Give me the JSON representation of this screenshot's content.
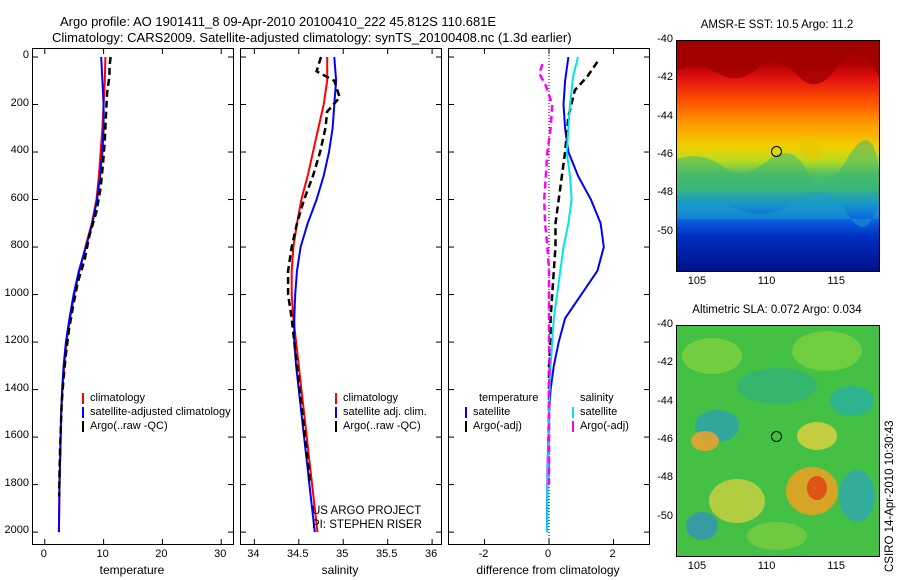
{
  "title_line1": "Argo profile: AO 1901411_8 09-Apr-2010 20100410_222 45.812S 110.681E",
  "title_line2": "Climatology: CARS2009. Satellite-adjusted climatology: synTS_20100408.nc (1.3d earlier)",
  "credit": "CSIRO 14-Apr-2010 10:30:43",
  "project_note": [
    "US ARGO PROJECT",
    "PI: STEPHEN RISER"
  ],
  "colors": {
    "climatology": "#ff0000",
    "satellite": "#0000ff",
    "argo": "#000000",
    "sal_satellite": "#00e5e5",
    "sal_argo": "#ff00ff"
  },
  "chart_data": [
    {
      "type": "line",
      "xlabel": "temperature",
      "xlim": [
        -2,
        32
      ],
      "xticks": [
        "0",
        "10",
        "20",
        "30"
      ],
      "ylim": [
        2050,
        0
      ],
      "yticks": [
        "0",
        "200",
        "400",
        "600",
        "800",
        "1000",
        "1200",
        "1400",
        "1600",
        "1800",
        "2000"
      ],
      "series": [
        {
          "name": "climatology",
          "style": "solid",
          "color": "#ff0000",
          "points": [
            [
              10.3,
              0
            ],
            [
              10.2,
              100
            ],
            [
              10.0,
              200
            ],
            [
              9.8,
              300
            ],
            [
              9.5,
              400
            ],
            [
              9.2,
              500
            ],
            [
              8.8,
              600
            ],
            [
              8.0,
              700
            ],
            [
              6.9,
              800
            ],
            [
              5.9,
              900
            ],
            [
              5.0,
              1000
            ],
            [
              4.3,
              1100
            ],
            [
              3.7,
              1200
            ],
            [
              3.3,
              1300
            ],
            [
              3.0,
              1400
            ],
            [
              2.8,
              1500
            ],
            [
              2.7,
              1600
            ],
            [
              2.6,
              1700
            ],
            [
              2.5,
              1800
            ],
            [
              2.45,
              1900
            ],
            [
              2.4,
              2000
            ]
          ]
        },
        {
          "name": "satellite-adjusted climatology",
          "style": "solid",
          "color": "#0000ff",
          "points": [
            [
              9.6,
              0
            ],
            [
              9.8,
              100
            ],
            [
              10.0,
              200
            ],
            [
              10.0,
              300
            ],
            [
              9.8,
              400
            ],
            [
              9.4,
              500
            ],
            [
              8.9,
              600
            ],
            [
              8.1,
              700
            ],
            [
              7.0,
              800
            ],
            [
              5.8,
              900
            ],
            [
              4.9,
              1000
            ],
            [
              4.2,
              1100
            ],
            [
              3.6,
              1200
            ],
            [
              3.2,
              1300
            ],
            [
              2.95,
              1400
            ],
            [
              2.8,
              1500
            ],
            [
              2.7,
              1600
            ],
            [
              2.6,
              1700
            ],
            [
              2.5,
              1800
            ],
            [
              2.45,
              1900
            ],
            [
              2.4,
              2000
            ]
          ]
        },
        {
          "name": "Argo(..raw -QC)",
          "style": "dash",
          "color": "#000000",
          "points": [
            [
              11.2,
              0
            ],
            [
              11.0,
              40
            ],
            [
              11.0,
              80
            ],
            [
              10.6,
              150
            ],
            [
              10.4,
              250
            ],
            [
              10.2,
              350
            ],
            [
              9.9,
              450
            ],
            [
              9.5,
              550
            ],
            [
              8.8,
              650
            ],
            [
              7.6,
              750
            ],
            [
              6.8,
              850
            ],
            [
              5.6,
              950
            ],
            [
              4.8,
              1050
            ],
            [
              4.1,
              1150
            ],
            [
              3.6,
              1250
            ],
            [
              3.2,
              1350
            ],
            [
              2.9,
              1450
            ],
            [
              2.75,
              1550
            ],
            [
              2.6,
              1650
            ],
            [
              2.5,
              1750
            ],
            [
              2.45,
              1850
            ]
          ]
        }
      ]
    },
    {
      "type": "line",
      "xlabel": "salinity",
      "xlim": [
        33.85,
        36.1
      ],
      "xticks": [
        "34",
        "34.5",
        "35",
        "35.5",
        "36"
      ],
      "ylim": [
        2050,
        0
      ],
      "series": [
        {
          "name": "climatology",
          "style": "solid",
          "color": "#ff0000",
          "points": [
            [
              34.82,
              0
            ],
            [
              34.82,
              100
            ],
            [
              34.78,
              200
            ],
            [
              34.72,
              300
            ],
            [
              34.66,
              400
            ],
            [
              34.6,
              500
            ],
            [
              34.53,
              600
            ],
            [
              34.48,
              700
            ],
            [
              34.44,
              800
            ],
            [
              34.42,
              900
            ],
            [
              34.42,
              1000
            ],
            [
              34.44,
              1100
            ],
            [
              34.47,
              1200
            ],
            [
              34.5,
              1300
            ],
            [
              34.53,
              1400
            ],
            [
              34.56,
              1500
            ],
            [
              34.59,
              1600
            ],
            [
              34.62,
              1700
            ],
            [
              34.65,
              1800
            ],
            [
              34.68,
              1900
            ],
            [
              34.71,
              2000
            ]
          ]
        },
        {
          "name": "satellite adj. clim.",
          "style": "solid",
          "color": "#0000ff",
          "points": [
            [
              34.9,
              0
            ],
            [
              34.92,
              100
            ],
            [
              34.9,
              200
            ],
            [
              34.88,
              300
            ],
            [
              34.84,
              400
            ],
            [
              34.78,
              500
            ],
            [
              34.7,
              600
            ],
            [
              34.6,
              700
            ],
            [
              34.52,
              800
            ],
            [
              34.48,
              900
            ],
            [
              34.46,
              1000
            ],
            [
              34.45,
              1100
            ],
            [
              34.45,
              1200
            ],
            [
              34.47,
              1300
            ],
            [
              34.5,
              1400
            ],
            [
              34.53,
              1500
            ],
            [
              34.56,
              1600
            ],
            [
              34.59,
              1700
            ],
            [
              34.62,
              1800
            ],
            [
              34.65,
              1900
            ],
            [
              34.68,
              2000
            ]
          ]
        },
        {
          "name": "Argo(..raw -QC)",
          "style": "dash",
          "color": "#000000",
          "points": [
            [
              34.75,
              0
            ],
            [
              34.7,
              60
            ],
            [
              34.9,
              100
            ],
            [
              34.96,
              170
            ],
            [
              34.82,
              230
            ],
            [
              34.8,
              300
            ],
            [
              34.74,
              400
            ],
            [
              34.66,
              500
            ],
            [
              34.56,
              600
            ],
            [
              34.48,
              700
            ],
            [
              34.42,
              800
            ],
            [
              34.38,
              900
            ],
            [
              34.38,
              1000
            ],
            [
              34.42,
              1100
            ],
            [
              34.45,
              1200
            ],
            [
              34.48,
              1300
            ],
            [
              34.51,
              1400
            ],
            [
              34.54,
              1500
            ],
            [
              34.57,
              1600
            ],
            [
              34.6,
              1700
            ],
            [
              34.63,
              1800
            ]
          ]
        }
      ]
    },
    {
      "type": "line",
      "xlabel": "difference from climatology",
      "xlim": [
        -3.1,
        3.1
      ],
      "xticks": [
        "-2",
        "0",
        "2"
      ],
      "ylim": [
        2050,
        0
      ],
      "legend_headers": [
        "temperature",
        "salinity"
      ],
      "series": [
        {
          "name": "satellite",
          "group": "temperature",
          "style": "solid",
          "color": "#0000ff",
          "points": [
            [
              0.6,
              0
            ],
            [
              0.5,
              100
            ],
            [
              0.45,
              200
            ],
            [
              0.5,
              300
            ],
            [
              0.6,
              400
            ],
            [
              0.9,
              500
            ],
            [
              1.3,
              600
            ],
            [
              1.6,
              700
            ],
            [
              1.7,
              800
            ],
            [
              1.5,
              900
            ],
            [
              1.0,
              1000
            ],
            [
              0.5,
              1100
            ],
            [
              0.3,
              1200
            ],
            [
              0.15,
              1300
            ],
            [
              0.05,
              1400
            ],
            [
              0.0,
              1500
            ],
            [
              -0.02,
              1600
            ],
            [
              -0.04,
              1700
            ],
            [
              -0.05,
              1800
            ],
            [
              -0.06,
              1900
            ],
            [
              -0.06,
              2000
            ]
          ]
        },
        {
          "name": "Argo(-adj)",
          "group": "temperature",
          "style": "dash",
          "color": "#000000",
          "points": [
            [
              1.5,
              20
            ],
            [
              1.2,
              80
            ],
            [
              0.8,
              140
            ],
            [
              0.6,
              250
            ],
            [
              0.5,
              400
            ],
            [
              0.4,
              500
            ],
            [
              0.3,
              600
            ],
            [
              0.2,
              700
            ],
            [
              0.2,
              800
            ],
            [
              0.15,
              900
            ],
            [
              0.1,
              1000
            ],
            [
              0.05,
              1100
            ],
            [
              0.05,
              1200
            ],
            [
              0.0,
              1300
            ],
            [
              0.0,
              1400
            ],
            [
              0.0,
              1500
            ],
            [
              -0.02,
              1600
            ],
            [
              -0.02,
              1700
            ],
            [
              -0.03,
              1800
            ]
          ]
        },
        {
          "name": "satellite",
          "group": "salinity",
          "style": "solid",
          "color": "#00e5e5",
          "points": [
            [
              0.9,
              0
            ],
            [
              0.75,
              80
            ],
            [
              0.65,
              200
            ],
            [
              0.6,
              300
            ],
            [
              0.55,
              400
            ],
            [
              0.65,
              500
            ],
            [
              0.7,
              600
            ],
            [
              0.6,
              700
            ],
            [
              0.45,
              800
            ],
            [
              0.35,
              900
            ],
            [
              0.25,
              1000
            ],
            [
              0.15,
              1100
            ],
            [
              0.1,
              1200
            ],
            [
              0.05,
              1300
            ],
            [
              0.02,
              1400
            ],
            [
              0.0,
              1500
            ],
            [
              -0.02,
              1600
            ],
            [
              -0.03,
              1700
            ],
            [
              -0.04,
              1800
            ],
            [
              -0.05,
              1900
            ],
            [
              -0.06,
              2000
            ]
          ]
        },
        {
          "name": "Argo(-adj)",
          "group": "salinity",
          "style": "dash",
          "color": "#ff00ff",
          "points": [
            [
              -0.2,
              30
            ],
            [
              -0.3,
              70
            ],
            [
              -0.1,
              120
            ],
            [
              0.1,
              200
            ],
            [
              0.05,
              300
            ],
            [
              -0.05,
              400
            ],
            [
              -0.1,
              500
            ],
            [
              -0.15,
              600
            ],
            [
              -0.12,
              700
            ],
            [
              -0.05,
              800
            ],
            [
              0.0,
              900
            ],
            [
              0.0,
              1000
            ],
            [
              0.0,
              1100
            ],
            [
              0.0,
              1200
            ],
            [
              0.02,
              1300
            ],
            [
              0.0,
              1400
            ],
            [
              0.0,
              1500
            ],
            [
              0.0,
              1600
            ],
            [
              0.0,
              1700
            ],
            [
              0.0,
              1800
            ]
          ]
        }
      ]
    },
    {
      "type": "heatmap",
      "title": "AMSR-E SST: 10.5 Argo: 11.2",
      "xticks": [
        "105",
        "110",
        "115"
      ],
      "yticks": [
        "-40",
        "-42",
        "-44",
        "-46",
        "-48",
        "-50"
      ],
      "xlim": [
        103.5,
        118.0
      ],
      "ylim": [
        -52,
        -40
      ],
      "marker": [
        110.7,
        -45.8
      ]
    },
    {
      "type": "heatmap",
      "title": "Altimetric SLA: 0.072 Argo: 0.034",
      "xticks": [
        "105",
        "110",
        "115"
      ],
      "yticks": [
        "-40",
        "-42",
        "-44",
        "-46",
        "-48",
        "-50"
      ],
      "xlim": [
        103.5,
        118.0
      ],
      "ylim": [
        -52,
        -40
      ],
      "marker": [
        110.7,
        -45.8
      ]
    }
  ]
}
